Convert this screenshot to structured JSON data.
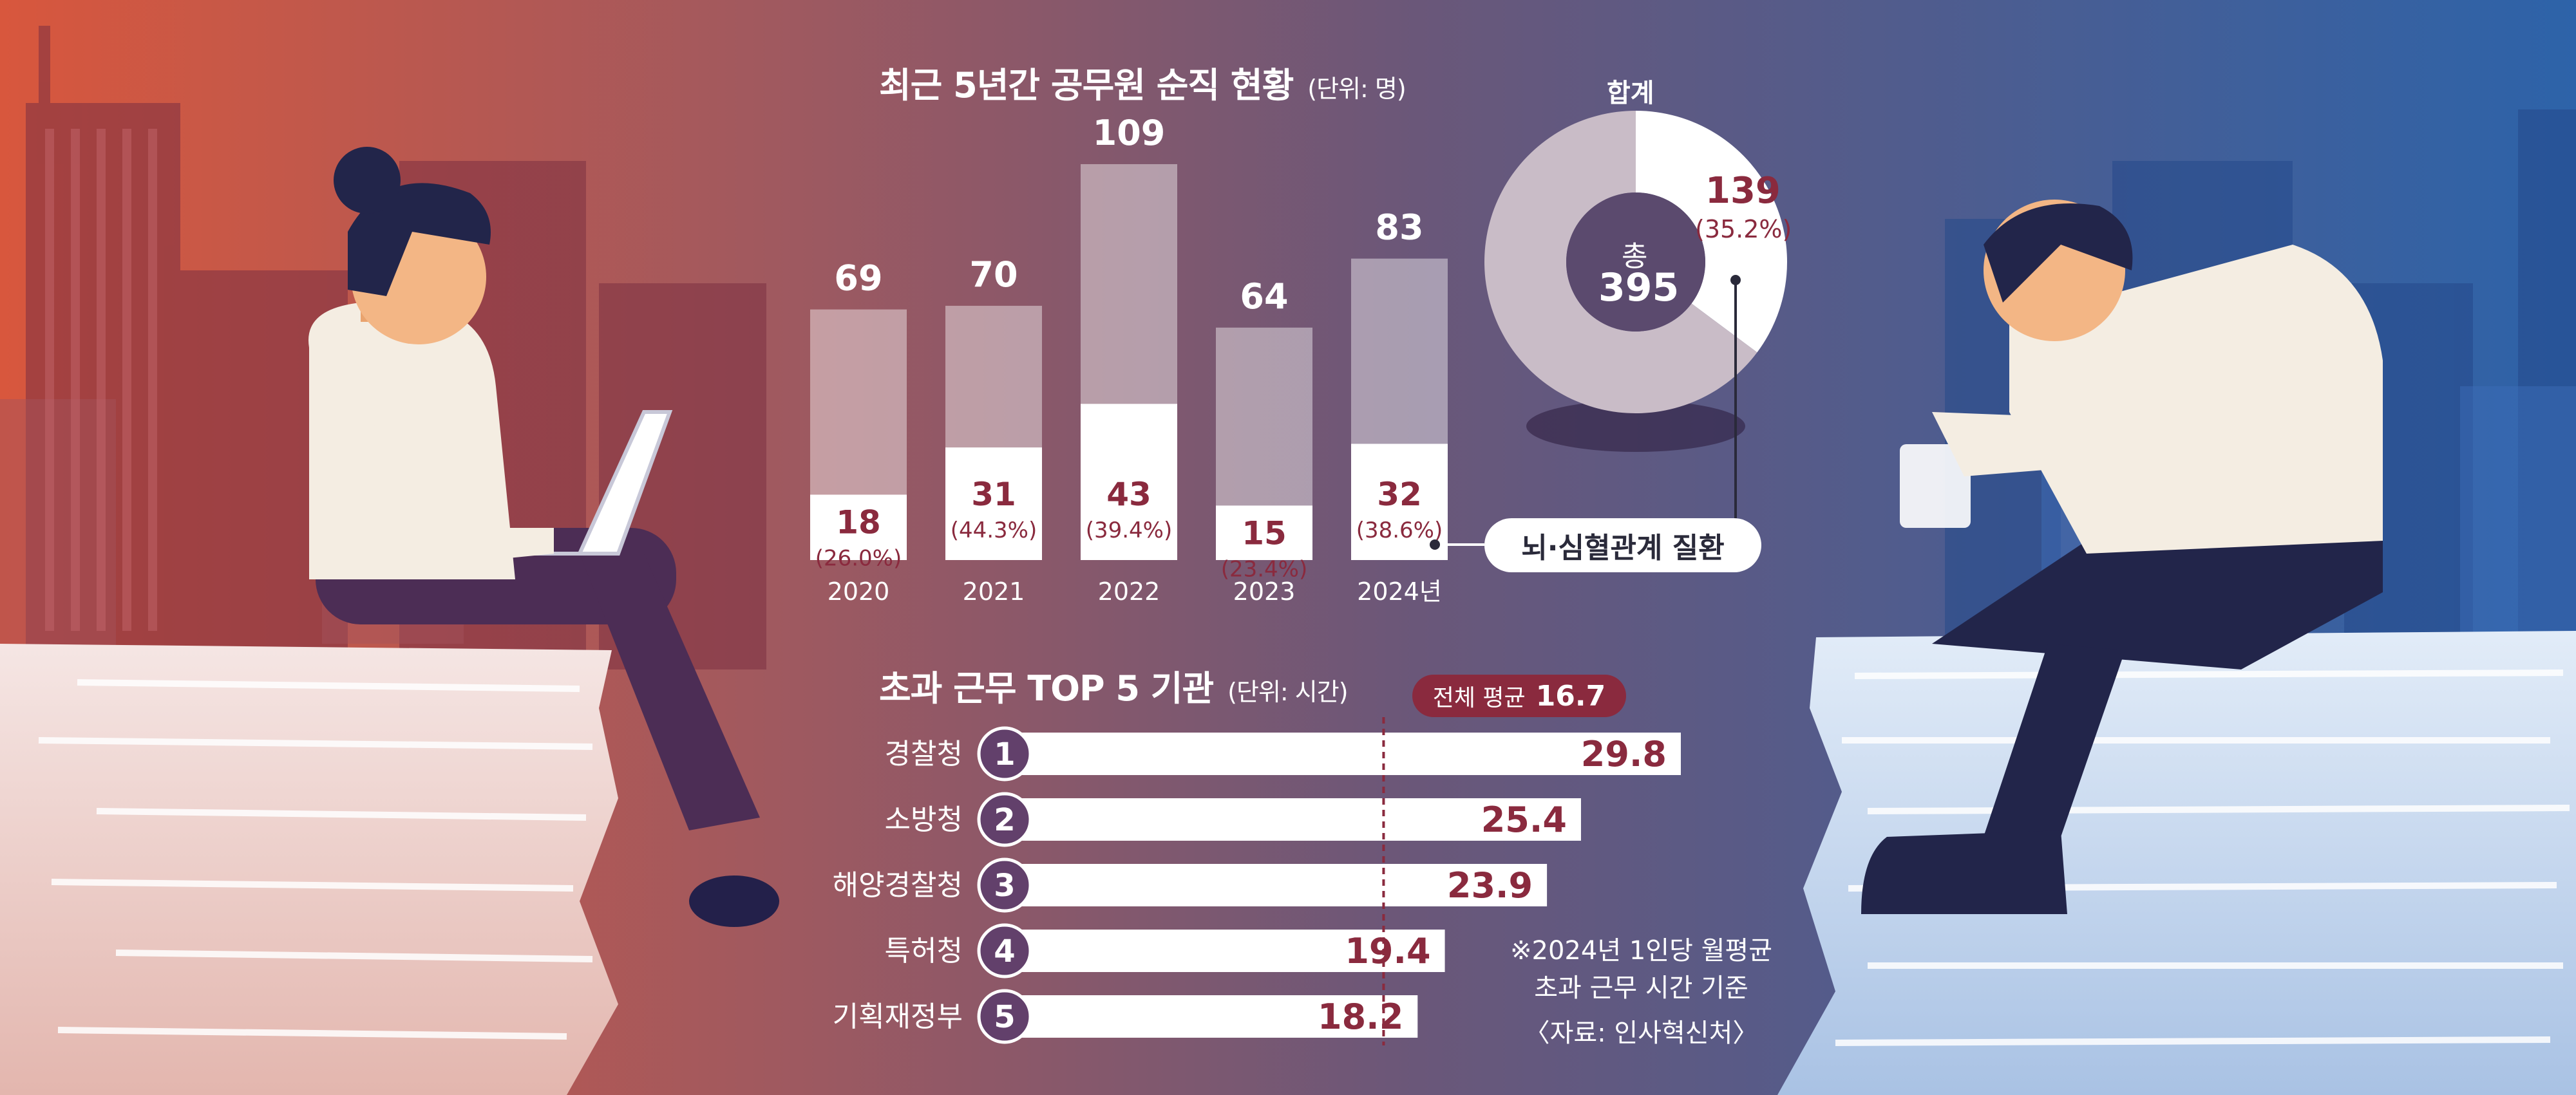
{
  "chart1": {
    "title": "최근 5년간 공무원 순직 현황",
    "unit": "(단위: 명)",
    "legend_label": "뇌·심혈관계 질환"
  },
  "donut": {
    "caption": "합계",
    "center_label": "총",
    "center_value": "395",
    "highlight_value": "139",
    "highlight_pct": "(35.2%)"
  },
  "chart2": {
    "title": "초과 근무 TOP 5 기관",
    "unit": "(단위: 시간)",
    "avg_label": "전체 평균",
    "avg_value": "16.7"
  },
  "footnote": {
    "line1": "※2024년 1인당 월평균",
    "line2": "초과 근무 시간 기준",
    "source": "〈자료: 인사혁신처〉"
  },
  "colors": {
    "accent": "#8a2a3e",
    "rank_circle": "#62406b",
    "bar_total": "#ffffff",
    "donut_rest": "#c9bcc7"
  },
  "chart_data": [
    {
      "type": "bar",
      "title": "최근 5년간 공무원 순직 현황",
      "unit": "(단위: 명)",
      "categories": [
        "2020",
        "2021",
        "2022",
        "2023",
        "2024년"
      ],
      "series": [
        {
          "values": [
            69,
            70,
            109,
            64,
            83
          ]
        },
        {
          "name": "뇌·심혈관계 질환",
          "values": [
            18,
            31,
            43,
            15,
            32
          ],
          "labels": [
            "(26.0%)",
            "(44.3%)",
            "(39.4%)",
            "(23.4%)",
            "(38.6%)"
          ]
        }
      ],
      "ylim": [
        0,
        109
      ]
    },
    {
      "type": "pie",
      "title": "합계",
      "total": 395,
      "slices": [
        {
          "label": "뇌·심혈관계 질환",
          "value": 139,
          "pct": "(35.2%)"
        },
        {
          "label": "",
          "value": 256
        }
      ]
    },
    {
      "type": "bar",
      "orientation": "horizontal",
      "title": "초과 근무 TOP 5 기관",
      "unit": "(단위: 시간)",
      "ranks": [
        "1",
        "2",
        "3",
        "4",
        "5"
      ],
      "categories": [
        "경찰청",
        "소방청",
        "해양경찰청",
        "특허청",
        "기획재정부"
      ],
      "values": [
        29.8,
        25.4,
        23.9,
        19.4,
        18.2
      ],
      "reference_line": {
        "label": "전체 평균",
        "value": 16.7
      }
    }
  ]
}
